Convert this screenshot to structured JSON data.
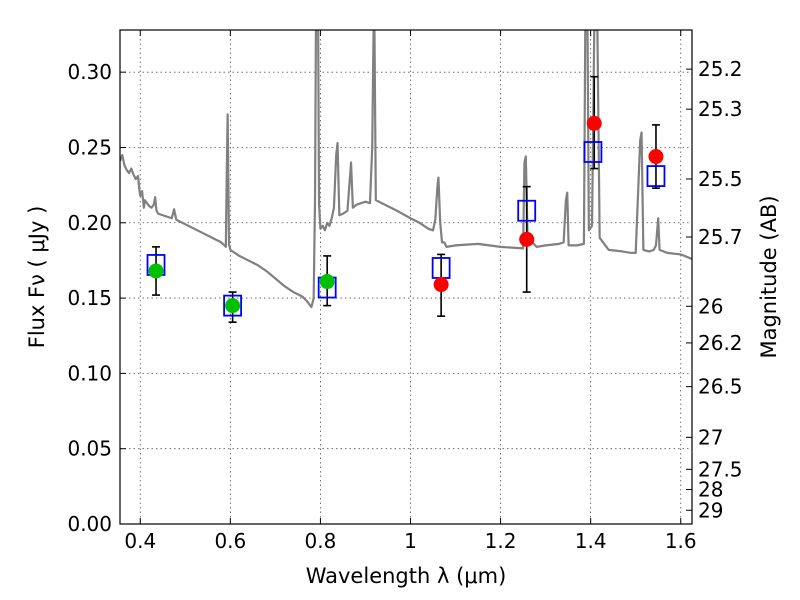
{
  "chart_data": {
    "type": "scatter",
    "title": "",
    "xlabel": "Wavelength  λ (μm)",
    "ylabel": "Flux  Fν  ( μJy )",
    "y2label": "Magnitude (AB)",
    "xlim": [
      0.355,
      1.625
    ],
    "ylim": [
      0.0,
      0.328
    ],
    "grid": true,
    "xticks": [
      0.4,
      0.6,
      0.8,
      1.0,
      1.2,
      1.4,
      1.6
    ],
    "xtick_labels": [
      "0.4",
      "0.6",
      "0.8",
      "1",
      "1.2",
      "1.4",
      "1.6"
    ],
    "yticks": [
      0.0,
      0.05,
      0.1,
      0.15,
      0.2,
      0.25,
      0.3
    ],
    "ytick_labels": [
      "0.00",
      "0.05",
      "0.10",
      "0.15",
      "0.20",
      "0.25",
      "0.30"
    ],
    "y2_ticks": [
      25.2,
      25.3,
      25.5,
      25.7,
      26,
      26.2,
      26.5,
      27,
      27.5,
      28,
      29
    ],
    "y2_tick_labels": [
      "25.2",
      "25.3",
      "25.5",
      "25.7",
      "26",
      "26.2",
      "26.5",
      "27",
      "27.5",
      "28",
      "29"
    ],
    "colors": {
      "model": "#808080",
      "green_points": "#00c000",
      "red_points": "#ff0000",
      "model_boxes": "#0000ff",
      "errorbars": "#000000"
    },
    "series": [
      {
        "kind": "line",
        "points": [
          [
            0.355,
            0.241
          ],
          [
            0.36,
            0.245
          ],
          [
            0.365,
            0.238
          ],
          [
            0.37,
            0.235
          ],
          [
            0.375,
            0.233
          ],
          [
            0.38,
            0.236
          ],
          [
            0.385,
            0.232
          ],
          [
            0.39,
            0.229
          ],
          [
            0.395,
            0.231
          ],
          [
            0.398,
            0.222
          ],
          [
            0.4,
            0.218
          ],
          [
            0.404,
            0.221
          ],
          [
            0.408,
            0.21
          ],
          [
            0.41,
            0.215
          ],
          [
            0.415,
            0.213
          ],
          [
            0.42,
            0.211
          ],
          [
            0.425,
            0.21
          ],
          [
            0.43,
            0.212
          ],
          [
            0.433,
            0.217
          ],
          [
            0.436,
            0.208
          ],
          [
            0.44,
            0.206
          ],
          [
            0.45,
            0.205
          ],
          [
            0.46,
            0.204
          ],
          [
            0.47,
            0.203
          ],
          [
            0.475,
            0.209
          ],
          [
            0.48,
            0.202
          ],
          [
            0.5,
            0.199
          ],
          [
            0.52,
            0.196
          ],
          [
            0.54,
            0.193
          ],
          [
            0.56,
            0.19
          ],
          [
            0.58,
            0.187
          ],
          [
            0.59,
            0.184
          ],
          [
            0.592,
            0.232
          ],
          [
            0.594,
            0.272
          ],
          [
            0.597,
            0.186
          ],
          [
            0.6,
            0.182
          ],
          [
            0.62,
            0.178
          ],
          [
            0.64,
            0.175
          ],
          [
            0.66,
            0.172
          ],
          [
            0.68,
            0.168
          ],
          [
            0.7,
            0.163
          ],
          [
            0.72,
            0.158
          ],
          [
            0.74,
            0.154
          ],
          [
            0.76,
            0.151
          ],
          [
            0.77,
            0.148
          ],
          [
            0.78,
            0.144
          ],
          [
            0.785,
            0.15
          ],
          [
            0.788,
            0.215
          ],
          [
            0.79,
            0.328
          ],
          [
            0.795,
            0.328
          ],
          [
            0.797,
            0.212
          ],
          [
            0.8,
            0.196
          ],
          [
            0.805,
            0.198
          ],
          [
            0.81,
            0.195
          ],
          [
            0.815,
            0.2
          ],
          [
            0.82,
            0.198
          ],
          [
            0.825,
            0.203
          ],
          [
            0.83,
            0.21
          ],
          [
            0.835,
            0.245
          ],
          [
            0.838,
            0.253
          ],
          [
            0.842,
            0.205
          ],
          [
            0.85,
            0.206
          ],
          [
            0.86,
            0.208
          ],
          [
            0.865,
            0.228
          ],
          [
            0.868,
            0.24
          ],
          [
            0.872,
            0.21
          ],
          [
            0.88,
            0.212
          ],
          [
            0.9,
            0.214
          ],
          [
            0.91,
            0.213
          ],
          [
            0.915,
            0.25
          ],
          [
            0.918,
            0.328
          ],
          [
            0.92,
            0.328
          ],
          [
            0.923,
            0.215
          ],
          [
            0.93,
            0.214
          ],
          [
            0.95,
            0.211
          ],
          [
            0.97,
            0.208
          ],
          [
            1.0,
            0.203
          ],
          [
            1.02,
            0.2
          ],
          [
            1.04,
            0.196
          ],
          [
            1.05,
            0.195
          ],
          [
            1.055,
            0.202
          ],
          [
            1.06,
            0.225
          ],
          [
            1.062,
            0.23
          ],
          [
            1.066,
            0.2
          ],
          [
            1.07,
            0.187
          ],
          [
            1.075,
            0.187
          ],
          [
            1.08,
            0.184
          ],
          [
            1.1,
            0.185
          ],
          [
            1.15,
            0.186
          ],
          [
            1.2,
            0.184
          ],
          [
            1.25,
            0.183
          ],
          [
            1.253,
            0.24
          ],
          [
            1.256,
            0.244
          ],
          [
            1.26,
            0.19
          ],
          [
            1.28,
            0.184
          ],
          [
            1.3,
            0.185
          ],
          [
            1.33,
            0.186
          ],
          [
            1.34,
            0.187
          ],
          [
            1.345,
            0.215
          ],
          [
            1.348,
            0.22
          ],
          [
            1.351,
            0.185
          ],
          [
            1.37,
            0.185
          ],
          [
            1.385,
            0.186
          ],
          [
            1.388,
            0.328
          ],
          [
            1.393,
            0.328
          ],
          [
            1.396,
            0.195
          ],
          [
            1.403,
            0.198
          ],
          [
            1.408,
            0.328
          ],
          [
            1.415,
            0.328
          ],
          [
            1.42,
            0.19
          ],
          [
            1.44,
            0.182
          ],
          [
            1.47,
            0.181
          ],
          [
            1.49,
            0.18
          ],
          [
            1.5,
            0.18
          ],
          [
            1.51,
            0.255
          ],
          [
            1.513,
            0.26
          ],
          [
            1.517,
            0.182
          ],
          [
            1.53,
            0.181
          ],
          [
            1.54,
            0.182
          ],
          [
            1.545,
            0.185
          ],
          [
            1.55,
            0.203
          ],
          [
            1.553,
            0.182
          ],
          [
            1.57,
            0.18
          ],
          [
            1.6,
            0.179
          ],
          [
            1.625,
            0.176
          ]
        ]
      },
      {
        "kind": "boxes",
        "x": [
          0.435,
          0.605,
          0.815,
          1.068,
          1.258,
          1.405,
          1.545
        ],
        "y": [
          0.172,
          0.145,
          0.157,
          0.17,
          0.208,
          0.247,
          0.231
        ]
      },
      {
        "kind": "points",
        "x": [
          0.435,
          0.605,
          0.815
        ],
        "y": [
          0.168,
          0.145,
          0.161
        ],
        "yerr_low": [
          0.016,
          0.011,
          0.016
        ],
        "yerr_high": [
          0.016,
          0.009,
          0.017
        ]
      },
      {
        "kind": "points",
        "x": [
          1.068,
          1.258,
          1.408,
          1.545
        ],
        "y": [
          0.159,
          0.189,
          0.266,
          0.244
        ],
        "yerr_low": [
          0.021,
          0.035,
          0.03,
          0.021
        ],
        "yerr_high": [
          0.02,
          0.035,
          0.031,
          0.021
        ]
      }
    ]
  }
}
